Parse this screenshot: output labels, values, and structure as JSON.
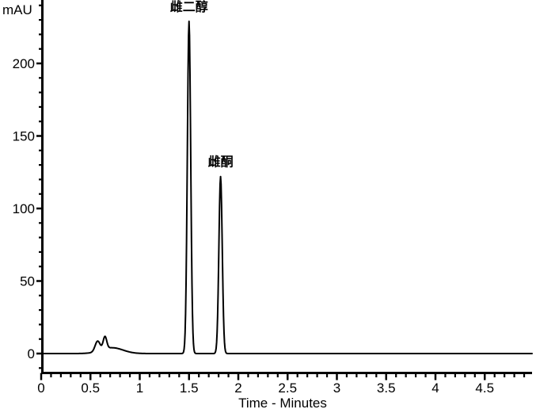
{
  "chart_data": {
    "type": "line",
    "title": "",
    "xlabel": "Time - Minutes",
    "ylabel": "mAU",
    "xlim": [
      0,
      5.0
    ],
    "ylim": [
      -13,
      243
    ],
    "grid": false,
    "legend": false,
    "line_color": "#000000",
    "background_color": "#ffffff",
    "x_major_ticks": {
      "values": [
        0,
        0.5,
        1,
        1.5,
        2,
        2.5,
        3,
        3.5,
        4,
        4.5
      ],
      "labels": [
        "0",
        "0.5",
        "1",
        "1.5",
        "2",
        "2.5",
        "3",
        "3.5",
        "4",
        "4.5"
      ]
    },
    "x_minor_tick_step": 0.1,
    "x_minor_tick_max": 4.9,
    "y_major_ticks": {
      "values": [
        0,
        50,
        100,
        150,
        200
      ],
      "labels": [
        "0",
        "50",
        "100",
        "150",
        "200"
      ]
    },
    "y_minor_tick_step": 10,
    "y_minor_tick_min": -10,
    "y_minor_tick_max": 240,
    "peaks": [
      {
        "label": "雌二醇",
        "retention_time_min": 1.5,
        "height_mAU": 229
      },
      {
        "label": "雌酮",
        "retention_time_min": 1.82,
        "height_mAU": 122
      }
    ],
    "trace_components": [
      {
        "name": "injection-front-bump-1",
        "center_min": 0.572,
        "height_mAU": 7.0,
        "sigma_min": 0.025
      },
      {
        "name": "injection-front-bump-2",
        "center_min": 0.647,
        "height_mAU": 8.6,
        "sigma_min": 0.018
      },
      {
        "name": "injection-front-tail",
        "center_min": 0.72,
        "height_mAU": 4.0,
        "sigma_min": 0.11
      },
      {
        "name": "雌二醇",
        "center_min": 1.5,
        "height_mAU": 229,
        "sigma_min": 0.017
      },
      {
        "name": "雌酮",
        "center_min": 1.82,
        "height_mAU": 122,
        "sigma_min": 0.017
      }
    ],
    "baseline_mAU": 0
  }
}
